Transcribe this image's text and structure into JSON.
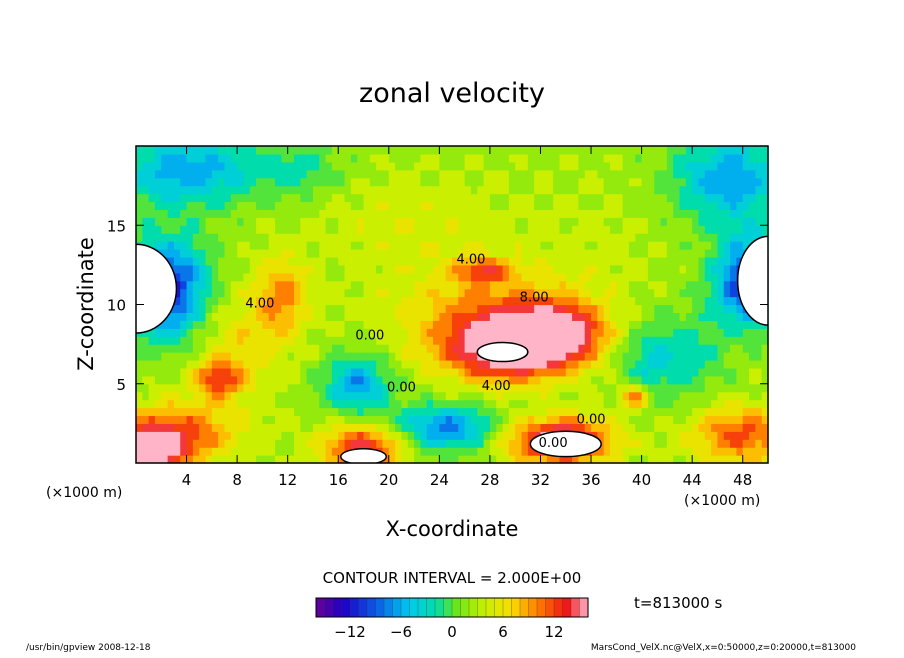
{
  "chart_data": {
    "type": "heatmap",
    "title": "zonal velocity",
    "xlabel": "X-coordinate",
    "ylabel": "Z-coordinate",
    "x_unit_label_left": "(×1000 m)",
    "x_unit_label_right": "(×1000 m)",
    "x_ticks": [
      "4",
      "8",
      "12",
      "16",
      "20",
      "24",
      "28",
      "32",
      "36",
      "40",
      "44",
      "48"
    ],
    "y_ticks": [
      "5",
      "10",
      "15"
    ],
    "xlim": [
      0,
      50
    ],
    "ylim": [
      0,
      20
    ],
    "contour_interval_label": "CONTOUR INTERVAL = 2.000E+00",
    "time_label": "t=813000 s",
    "colorbar_ticks": [
      "−12",
      "−6",
      "0",
      "6",
      "12"
    ],
    "colorbar_range": [
      -16,
      16
    ],
    "contour_labels": [
      {
        "text": "4.00",
        "x": 26.5,
        "y": 12.6
      },
      {
        "text": "8.00",
        "x": 31.5,
        "y": 10.2
      },
      {
        "text": "4.00",
        "x": 28.5,
        "y": 4.6
      },
      {
        "text": "4.00",
        "x": 9.8,
        "y": 9.8
      },
      {
        "text": "0.00",
        "x": 18.5,
        "y": 7.8
      },
      {
        "text": "0.00",
        "x": 21.0,
        "y": 4.5
      },
      {
        "text": "0.00",
        "x": 36.0,
        "y": 2.5
      },
      {
        "text": "0.00",
        "x": 33.0,
        "y": 1.0
      }
    ],
    "blobs": [
      {
        "x": 29.5,
        "y": 7.2,
        "rx": 5.5,
        "ry": 2.2,
        "v": 15
      },
      {
        "x": 33.5,
        "y": 8.3,
        "rx": 3.5,
        "ry": 1.8,
        "v": 12
      },
      {
        "x": 28.5,
        "y": 9.5,
        "rx": 8,
        "ry": 3,
        "v": 7
      },
      {
        "x": 27.5,
        "y": 12.2,
        "rx": 2.5,
        "ry": 0.8,
        "v": 8
      },
      {
        "x": 11.5,
        "y": 10.5,
        "rx": 2.2,
        "ry": 2.5,
        "v": 7
      },
      {
        "x": 6.5,
        "y": 5.3,
        "rx": 2.0,
        "ry": 1.2,
        "v": 9
      },
      {
        "x": 39.5,
        "y": 4.2,
        "rx": 1.5,
        "ry": 0.9,
        "v": 9
      },
      {
        "x": 3.0,
        "y": 2.0,
        "rx": 5.5,
        "ry": 2.0,
        "v": 9
      },
      {
        "x": 1.2,
        "y": 0.8,
        "rx": 3,
        "ry": 1.3,
        "v": 14
      },
      {
        "x": 18.0,
        "y": 1.0,
        "rx": 3.5,
        "ry": 1.5,
        "v": 12
      },
      {
        "x": 33.5,
        "y": 1.4,
        "rx": 4.5,
        "ry": 1.6,
        "v": 15
      },
      {
        "x": 48.0,
        "y": 1.8,
        "rx": 4.5,
        "ry": 2.0,
        "v": 9
      },
      {
        "x": 17.5,
        "y": 5.0,
        "rx": 2.8,
        "ry": 2.0,
        "v": -9
      },
      {
        "x": 24.5,
        "y": 2.2,
        "rx": 4.5,
        "ry": 1.6,
        "v": -10
      },
      {
        "x": 40.5,
        "y": 6.2,
        "rx": 2.5,
        "ry": 3.0,
        "v": -5
      },
      {
        "x": 2.5,
        "y": 11.0,
        "rx": 3.5,
        "ry": 3.5,
        "v": -14
      },
      {
        "x": 48.5,
        "y": 11.5,
        "rx": 3.0,
        "ry": 3.0,
        "v": -14
      },
      {
        "x": 4.0,
        "y": 18.5,
        "rx": 6,
        "ry": 2.5,
        "v": -9
      },
      {
        "x": 47.0,
        "y": 18.0,
        "rx": 5,
        "ry": 3.0,
        "v": -9
      },
      {
        "x": 13.0,
        "y": 18.5,
        "rx": 4,
        "ry": 2.0,
        "v": -4
      },
      {
        "x": 44.0,
        "y": 7.0,
        "rx": 3,
        "ry": 3.0,
        "v": -4
      },
      {
        "x": 8.0,
        "y": 7.5,
        "rx": 4,
        "ry": 3.5,
        "v": 4
      },
      {
        "x": 22.0,
        "y": 15.0,
        "rx": 10,
        "ry": 3.5,
        "v": 2
      },
      {
        "x": 37.0,
        "y": 13.5,
        "rx": 5,
        "ry": 4.0,
        "v": 1
      }
    ],
    "null_regions": [
      {
        "x": 0.0,
        "y": 11.0,
        "rx": 3.2,
        "ry": 2.8
      },
      {
        "x": 50.0,
        "y": 11.5,
        "rx": 2.4,
        "ry": 2.8
      },
      {
        "x": 29.0,
        "y": 7.0,
        "rx": 2.0,
        "ry": 0.6
      },
      {
        "x": 34.0,
        "y": 1.2,
        "rx": 2.8,
        "ry": 0.8
      },
      {
        "x": 18.0,
        "y": 0.4,
        "rx": 1.8,
        "ry": 0.5
      }
    ]
  },
  "footer": {
    "left": "/usr/bin/gpview   2008-12-18",
    "right": "MarsCond_VelX.nc@VelX,x=0:50000,z=0:20000,t=813000"
  }
}
